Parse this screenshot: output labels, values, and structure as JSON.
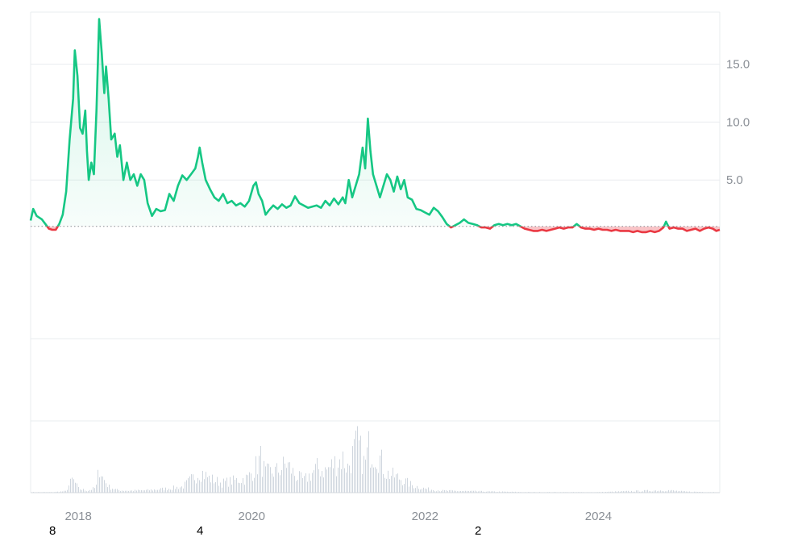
{
  "chart_data": {
    "type": "area",
    "title": "",
    "xlabel": "",
    "ylabel": "",
    "baseline": 1.0,
    "ylim": [
      -8.7,
      19.5
    ],
    "xlim": [
      2017.45,
      2025.4
    ],
    "y_ticks": [
      5.0,
      10.0,
      15.0
    ],
    "y_tick_labels": [
      "5.0",
      "10.0",
      "15.0"
    ],
    "x_ticks": [
      2018,
      2020,
      2022,
      2024
    ],
    "x_tick_labels": [
      "2018",
      "2020",
      "2022",
      "2024"
    ],
    "grid": true,
    "legend": "none",
    "colors": {
      "above": "#16c784",
      "below": "#ea3943",
      "volume": "#cfd6de",
      "grid": "#e9ecef"
    },
    "series": [
      {
        "values": [
          [
            2017.45,
            1.5
          ],
          [
            2017.48,
            2.5
          ],
          [
            2017.52,
            1.9
          ],
          [
            2017.58,
            1.6
          ],
          [
            2017.62,
            1.2
          ],
          [
            2017.66,
            0.8
          ],
          [
            2017.7,
            0.7
          ],
          [
            2017.74,
            0.7
          ],
          [
            2017.78,
            1.2
          ],
          [
            2017.82,
            2.0
          ],
          [
            2017.86,
            4.0
          ],
          [
            2017.9,
            8.5
          ],
          [
            2017.94,
            12.0
          ],
          [
            2017.96,
            16.2
          ],
          [
            2017.99,
            14.0
          ],
          [
            2018.02,
            9.5
          ],
          [
            2018.05,
            9.0
          ],
          [
            2018.08,
            11.0
          ],
          [
            2018.1,
            7.5
          ],
          [
            2018.12,
            5.0
          ],
          [
            2018.15,
            6.5
          ],
          [
            2018.18,
            5.5
          ],
          [
            2018.21,
            11.0
          ],
          [
            2018.24,
            18.9
          ],
          [
            2018.27,
            16.0
          ],
          [
            2018.3,
            12.5
          ],
          [
            2018.32,
            14.8
          ],
          [
            2018.35,
            12.0
          ],
          [
            2018.38,
            8.5
          ],
          [
            2018.42,
            9.0
          ],
          [
            2018.45,
            7.0
          ],
          [
            2018.48,
            8.0
          ],
          [
            2018.52,
            5.0
          ],
          [
            2018.56,
            6.5
          ],
          [
            2018.6,
            5.0
          ],
          [
            2018.64,
            5.5
          ],
          [
            2018.68,
            4.5
          ],
          [
            2018.72,
            5.5
          ],
          [
            2018.76,
            5.0
          ],
          [
            2018.8,
            3.0
          ],
          [
            2018.85,
            1.9
          ],
          [
            2018.9,
            2.5
          ],
          [
            2018.95,
            2.3
          ],
          [
            2019.0,
            2.4
          ],
          [
            2019.05,
            3.8
          ],
          [
            2019.1,
            3.2
          ],
          [
            2019.15,
            4.5
          ],
          [
            2019.2,
            5.4
          ],
          [
            2019.25,
            5.0
          ],
          [
            2019.3,
            5.5
          ],
          [
            2019.35,
            6.0
          ],
          [
            2019.38,
            7.0
          ],
          [
            2019.4,
            7.8
          ],
          [
            2019.43,
            6.5
          ],
          [
            2019.47,
            5.0
          ],
          [
            2019.52,
            4.2
          ],
          [
            2019.57,
            3.5
          ],
          [
            2019.62,
            3.2
          ],
          [
            2019.67,
            3.8
          ],
          [
            2019.72,
            3.0
          ],
          [
            2019.77,
            3.2
          ],
          [
            2019.82,
            2.8
          ],
          [
            2019.87,
            3.0
          ],
          [
            2019.92,
            2.7
          ],
          [
            2019.97,
            3.2
          ],
          [
            2020.02,
            4.5
          ],
          [
            2020.05,
            4.8
          ],
          [
            2020.08,
            3.8
          ],
          [
            2020.12,
            3.2
          ],
          [
            2020.16,
            2.0
          ],
          [
            2020.2,
            2.4
          ],
          [
            2020.25,
            2.8
          ],
          [
            2020.3,
            2.5
          ],
          [
            2020.35,
            2.9
          ],
          [
            2020.4,
            2.6
          ],
          [
            2020.45,
            2.8
          ],
          [
            2020.5,
            3.6
          ],
          [
            2020.55,
            3.0
          ],
          [
            2020.6,
            2.8
          ],
          [
            2020.65,
            2.6
          ],
          [
            2020.7,
            2.7
          ],
          [
            2020.75,
            2.8
          ],
          [
            2020.8,
            2.6
          ],
          [
            2020.85,
            3.2
          ],
          [
            2020.9,
            2.8
          ],
          [
            2020.95,
            3.4
          ],
          [
            2021.0,
            2.9
          ],
          [
            2021.05,
            3.5
          ],
          [
            2021.08,
            3.0
          ],
          [
            2021.12,
            5.0
          ],
          [
            2021.16,
            3.5
          ],
          [
            2021.2,
            4.5
          ],
          [
            2021.24,
            5.5
          ],
          [
            2021.28,
            7.8
          ],
          [
            2021.31,
            6.0
          ],
          [
            2021.34,
            10.3
          ],
          [
            2021.37,
            7.5
          ],
          [
            2021.4,
            5.5
          ],
          [
            2021.44,
            4.5
          ],
          [
            2021.48,
            3.5
          ],
          [
            2021.52,
            4.5
          ],
          [
            2021.56,
            5.5
          ],
          [
            2021.6,
            5.0
          ],
          [
            2021.64,
            4.0
          ],
          [
            2021.68,
            5.3
          ],
          [
            2021.72,
            4.2
          ],
          [
            2021.76,
            5.0
          ],
          [
            2021.8,
            3.5
          ],
          [
            2021.85,
            3.3
          ],
          [
            2021.9,
            2.5
          ],
          [
            2021.95,
            2.4
          ],
          [
            2022.0,
            2.2
          ],
          [
            2022.05,
            2.0
          ],
          [
            2022.1,
            2.6
          ],
          [
            2022.15,
            2.3
          ],
          [
            2022.2,
            1.8
          ],
          [
            2022.25,
            1.2
          ],
          [
            2022.3,
            0.9
          ],
          [
            2022.35,
            1.1
          ],
          [
            2022.4,
            1.3
          ],
          [
            2022.45,
            1.6
          ],
          [
            2022.5,
            1.3
          ],
          [
            2022.55,
            1.2
          ],
          [
            2022.6,
            1.1
          ],
          [
            2022.65,
            0.9
          ],
          [
            2022.7,
            0.9
          ],
          [
            2022.75,
            0.8
          ],
          [
            2022.8,
            1.1
          ],
          [
            2022.85,
            1.2
          ],
          [
            2022.9,
            1.1
          ],
          [
            2022.95,
            1.2
          ],
          [
            2023.0,
            1.1
          ],
          [
            2023.05,
            1.2
          ],
          [
            2023.1,
            1.0
          ],
          [
            2023.15,
            0.8
          ],
          [
            2023.2,
            0.7
          ],
          [
            2023.25,
            0.6
          ],
          [
            2023.3,
            0.6
          ],
          [
            2023.35,
            0.7
          ],
          [
            2023.4,
            0.6
          ],
          [
            2023.45,
            0.7
          ],
          [
            2023.5,
            0.8
          ],
          [
            2023.55,
            0.9
          ],
          [
            2023.6,
            0.8
          ],
          [
            2023.65,
            0.9
          ],
          [
            2023.7,
            0.9
          ],
          [
            2023.75,
            1.2
          ],
          [
            2023.8,
            0.9
          ],
          [
            2023.85,
            0.8
          ],
          [
            2023.9,
            0.8
          ],
          [
            2023.95,
            0.7
          ],
          [
            2024.0,
            0.8
          ],
          [
            2024.05,
            0.7
          ],
          [
            2024.1,
            0.7
          ],
          [
            2024.15,
            0.6
          ],
          [
            2024.2,
            0.7
          ],
          [
            2024.25,
            0.6
          ],
          [
            2024.3,
            0.6
          ],
          [
            2024.35,
            0.6
          ],
          [
            2024.4,
            0.5
          ],
          [
            2024.45,
            0.6
          ],
          [
            2024.5,
            0.5
          ],
          [
            2024.55,
            0.5
          ],
          [
            2024.6,
            0.6
          ],
          [
            2024.65,
            0.5
          ],
          [
            2024.7,
            0.6
          ],
          [
            2024.75,
            0.9
          ],
          [
            2024.78,
            1.4
          ],
          [
            2024.82,
            0.8
          ],
          [
            2024.87,
            0.9
          ],
          [
            2024.92,
            0.8
          ],
          [
            2024.97,
            0.8
          ],
          [
            2025.02,
            0.6
          ],
          [
            2025.07,
            0.7
          ],
          [
            2025.12,
            0.8
          ],
          [
            2025.17,
            0.6
          ],
          [
            2025.22,
            0.8
          ],
          [
            2025.27,
            0.9
          ],
          [
            2025.32,
            0.8
          ],
          [
            2025.36,
            0.6
          ],
          [
            2025.4,
            0.7
          ]
        ]
      }
    ],
    "volume": {
      "ylim": [
        0,
        100
      ],
      "values": [
        [
          2017.45,
          1
        ],
        [
          2017.7,
          1
        ],
        [
          2017.85,
          3
        ],
        [
          2017.93,
          28
        ],
        [
          2018.0,
          8
        ],
        [
          2018.1,
          4
        ],
        [
          2018.2,
          10
        ],
        [
          2018.24,
          55
        ],
        [
          2018.28,
          30
        ],
        [
          2018.35,
          12
        ],
        [
          2018.45,
          5
        ],
        [
          2018.6,
          4
        ],
        [
          2018.8,
          5
        ],
        [
          2019.0,
          8
        ],
        [
          2019.2,
          12
        ],
        [
          2019.35,
          35
        ],
        [
          2019.4,
          45
        ],
        [
          2019.5,
          30
        ],
        [
          2019.65,
          20
        ],
        [
          2019.8,
          25
        ],
        [
          2019.95,
          30
        ],
        [
          2020.05,
          55
        ],
        [
          2020.1,
          70
        ],
        [
          2020.15,
          40
        ],
        [
          2020.3,
          45
        ],
        [
          2020.4,
          60
        ],
        [
          2020.5,
          35
        ],
        [
          2020.6,
          25
        ],
        [
          2020.75,
          50
        ],
        [
          2020.85,
          45
        ],
        [
          2020.95,
          60
        ],
        [
          2021.05,
          70
        ],
        [
          2021.1,
          50
        ],
        [
          2021.18,
          85
        ],
        [
          2021.22,
          100
        ],
        [
          2021.3,
          55
        ],
        [
          2021.35,
          95
        ],
        [
          2021.45,
          80
        ],
        [
          2021.55,
          40
        ],
        [
          2021.7,
          30
        ],
        [
          2021.85,
          15
        ],
        [
          2022.0,
          8
        ],
        [
          2022.2,
          4
        ],
        [
          2022.5,
          3
        ],
        [
          2022.8,
          2
        ],
        [
          2023.2,
          1
        ],
        [
          2024.0,
          1
        ],
        [
          2024.78,
          5
        ],
        [
          2025.0,
          2
        ],
        [
          2025.4,
          1
        ]
      ]
    }
  },
  "extra_labels": [
    {
      "id": "a",
      "text": "8"
    },
    {
      "id": "b",
      "text": "4"
    },
    {
      "id": "c",
      "text": "2"
    }
  ]
}
